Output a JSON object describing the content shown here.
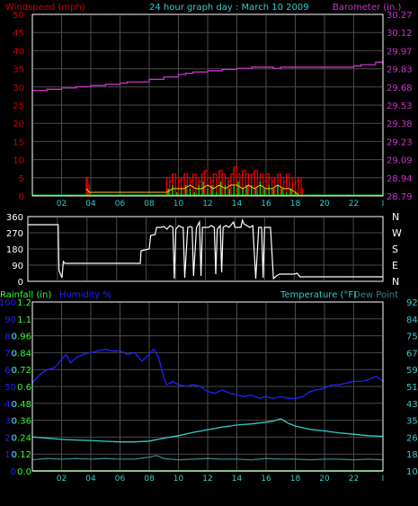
{
  "colors": {
    "background": "#000000",
    "grid": "#4a4a4a",
    "frame": "#ffffff",
    "wind": "#cc0000",
    "gust": "#ff0000",
    "windavg": "#ffcc00",
    "baro": "#cc33cc",
    "windgreen": "#00cc00",
    "rain": "#33ff33",
    "humidity": "#2222ff",
    "temp": "#33cccc",
    "dew": "#338888",
    "title": "#33cccc"
  },
  "chart_data": [
    {
      "type": "line",
      "title": "24 hour graph day : March 10 2009",
      "left_label": "Windspeed (mph)",
      "right_label": "Barometer (in.)",
      "x_ticks": [
        "02",
        "04",
        "06",
        "08",
        "10",
        "12",
        "14",
        "16",
        "18",
        "20",
        "22"
      ],
      "y_left": {
        "ticks": [
          "50",
          "45",
          "40",
          "35",
          "30",
          "25",
          "20",
          "15",
          "10",
          "5",
          "0"
        ],
        "ylim": [
          0,
          50
        ]
      },
      "y_right": {
        "ticks": [
          "30.27",
          "30.12",
          "29.97",
          "29.83",
          "29.68",
          "29.53",
          "29.38",
          "29.23",
          "29.09",
          "28.94",
          "28.79"
        ],
        "ylim": [
          28.79,
          30.27
        ]
      },
      "series": [
        {
          "key": "barometer",
          "axis": "right",
          "x": [
            0.0,
            0.8,
            1.0,
            2.0,
            3.0,
            4.0,
            5.0,
            6.0,
            6.5,
            7.0,
            8.0,
            9.0,
            10.0,
            10.5,
            11.0,
            12.0,
            13.0,
            14.0,
            14.5,
            15.0,
            16.0,
            16.5,
            17.0,
            18.0,
            19.0,
            20.0,
            21.0,
            22.0,
            22.5,
            23.0,
            23.5,
            24.0
          ],
          "y": [
            29.65,
            29.65,
            29.66,
            29.67,
            29.68,
            29.69,
            29.7,
            29.71,
            29.72,
            29.72,
            29.74,
            29.76,
            29.78,
            29.79,
            29.8,
            29.81,
            29.82,
            29.83,
            29.83,
            29.84,
            29.84,
            29.83,
            29.84,
            29.84,
            29.84,
            29.84,
            29.84,
            29.85,
            29.86,
            29.86,
            29.88,
            29.86
          ]
        },
        {
          "key": "wind_gust",
          "axis": "left",
          "x": [
            3.6,
            3.7,
            3.8,
            3.9,
            4.0,
            9.0,
            9.2,
            9.4,
            9.6,
            9.8,
            10.0,
            10.2,
            10.4,
            10.6,
            10.8,
            11.0,
            11.2,
            11.4,
            11.6,
            11.8,
            12.0,
            12.2,
            12.4,
            12.6,
            12.8,
            13.0,
            13.2,
            13.4,
            13.6,
            13.8,
            14.0,
            14.2,
            14.4,
            14.6,
            14.8,
            15.0,
            15.2,
            15.4,
            15.6,
            15.8,
            16.0,
            16.2,
            16.4,
            16.6,
            16.8,
            17.0,
            17.2,
            17.4,
            17.6,
            17.8,
            18.0,
            18.2,
            18.4,
            18.5
          ],
          "y": [
            0,
            5,
            3,
            1,
            0,
            0,
            5,
            4,
            6,
            5,
            4,
            5,
            6,
            5,
            4,
            6,
            5,
            4,
            6,
            7,
            5,
            4,
            6,
            5,
            7,
            6,
            5,
            4,
            6,
            8,
            6,
            5,
            7,
            6,
            5,
            6,
            7,
            5,
            6,
            4,
            6,
            5,
            4,
            5,
            6,
            5,
            4,
            6,
            5,
            3,
            4,
            5,
            2,
            0
          ]
        },
        {
          "key": "wind_green",
          "axis": "left",
          "x": [
            9.0,
            9.3,
            9.6,
            9.9,
            10.2,
            10.5,
            10.8,
            11.1,
            11.4,
            11.7,
            12.0,
            12.3,
            12.6,
            12.9,
            13.2,
            13.5,
            13.8,
            14.1,
            14.4,
            14.7,
            15.0,
            15.3,
            15.6,
            15.9,
            16.2,
            16.5,
            16.8,
            17.1,
            17.4,
            17.7,
            18.0,
            18.3
          ],
          "y": [
            0,
            2,
            3,
            1,
            2,
            3,
            2,
            1,
            3,
            4,
            2,
            3,
            1,
            4,
            3,
            2,
            3,
            4,
            2,
            3,
            3,
            2,
            4,
            2,
            3,
            2,
            3,
            2,
            1,
            2,
            1,
            0
          ]
        },
        {
          "key": "wind_avg",
          "axis": "left",
          "x": [
            3.7,
            3.9,
            9.2,
            9.6,
            10.0,
            10.4,
            10.8,
            11.2,
            11.6,
            12.0,
            12.4,
            12.8,
            13.2,
            13.6,
            14.0,
            14.4,
            14.8,
            15.2,
            15.6,
            16.0,
            16.4,
            16.8,
            17.2,
            17.6,
            18.0,
            18.3
          ],
          "y": [
            2,
            1,
            1,
            2,
            2,
            2,
            3,
            2,
            2,
            3,
            2,
            3,
            2,
            3,
            3,
            2,
            3,
            2,
            3,
            2,
            2,
            3,
            2,
            2,
            1,
            0
          ]
        }
      ]
    },
    {
      "type": "line",
      "right_label": "N W S E N",
      "y_left": {
        "ticks": [
          "360",
          "270",
          "180",
          "90",
          "0"
        ],
        "ylim": [
          0,
          360
        ]
      },
      "y_right_ticks": [
        "N",
        "W",
        "S",
        "E",
        "N"
      ],
      "series": [
        {
          "key": "wind_direction",
          "x": [
            0.0,
            2.0,
            2.05,
            2.1,
            2.3,
            2.4,
            2.5,
            5.0,
            6.0,
            7.0,
            7.6,
            7.65,
            8.2,
            8.3,
            8.6,
            8.7,
            9.0,
            9.2,
            9.4,
            9.6,
            9.8,
            9.9,
            10.0,
            10.2,
            10.4,
            10.5,
            10.6,
            10.8,
            11.0,
            11.1,
            11.2,
            11.4,
            11.6,
            11.7,
            11.8,
            12.0,
            12.2,
            12.4,
            12.6,
            12.7,
            12.8,
            13.0,
            13.1,
            13.2,
            13.4,
            13.6,
            13.8,
            13.9,
            14.0,
            14.2,
            14.4,
            14.5,
            14.6,
            14.8,
            15.0,
            15.2,
            15.4,
            15.6,
            15.8,
            15.9,
            16.0,
            16.2,
            16.4,
            16.6,
            16.8,
            16.9,
            17.0,
            17.2,
            17.4,
            17.6,
            17.8,
            18.0,
            18.2,
            18.4,
            20.0,
            22.0,
            24.0
          ],
          "y": [
            315,
            315,
            315,
            60,
            20,
            110,
            100,
            100,
            100,
            100,
            100,
            170,
            180,
            255,
            260,
            300,
            300,
            305,
            290,
            310,
            300,
            15,
            290,
            310,
            300,
            300,
            20,
            300,
            305,
            300,
            30,
            300,
            330,
            30,
            300,
            300,
            300,
            310,
            300,
            40,
            290,
            310,
            50,
            300,
            310,
            300,
            320,
            330,
            300,
            300,
            300,
            340,
            320,
            310,
            300,
            310,
            15,
            300,
            300,
            20,
            300,
            300,
            300,
            15,
            30,
            35,
            40,
            40,
            40,
            40,
            40,
            40,
            45,
            25,
            25,
            25,
            25
          ]
        }
      ]
    },
    {
      "type": "line",
      "left_label_rain": "Rainfall (in)",
      "left_label_humidity": "Humidity %",
      "right_label_temp": "Temperature (°F)",
      "right_label_dew": "Dew Point",
      "x_ticks": [
        "02",
        "04",
        "06",
        "08",
        "10",
        "12",
        "14",
        "16",
        "18",
        "20",
        "22"
      ],
      "y_humidity": {
        "ticks": [
          "100",
          "90",
          "80",
          "70",
          "60",
          "50",
          "40",
          "30",
          "20",
          "10",
          "0"
        ],
        "ylim": [
          0,
          100
        ]
      },
      "y_rain": {
        "ticks": [
          "1.2",
          "1.1",
          "0.96",
          "0.84",
          "0.72",
          "0.6",
          "0.48",
          "0.36",
          "0.24",
          "0.12",
          "0.0"
        ],
        "ylim": [
          0,
          1.2
        ]
      },
      "y_temp": {
        "ticks": [
          "92",
          "84",
          "75",
          "67",
          "59",
          "51",
          "43",
          "35",
          "26",
          "18",
          "10"
        ],
        "ylim": [
          10,
          92
        ]
      },
      "series": [
        {
          "key": "humidity",
          "x": [
            0.0,
            0.5,
            1.0,
            1.5,
            2.0,
            2.3,
            2.6,
            3.0,
            3.5,
            4.0,
            4.5,
            5.0,
            5.5,
            6.0,
            6.5,
            7.0,
            7.5,
            8.0,
            8.3,
            8.6,
            8.8,
            9.0,
            9.2,
            9.6,
            10.0,
            10.5,
            11.0,
            11.5,
            12.0,
            12.5,
            13.0,
            13.5,
            14.0,
            14.5,
            15.0,
            15.5,
            16.0,
            16.5,
            17.0,
            17.5,
            18.0,
            18.5,
            19.0,
            19.5,
            20.0,
            20.5,
            21.0,
            21.5,
            22.0,
            22.5,
            23.0,
            23.5,
            24.0
          ],
          "y": [
            52,
            57,
            60,
            61,
            66,
            69,
            64,
            67,
            69,
            70,
            71,
            72,
            71,
            71,
            69,
            70,
            65,
            69,
            72,
            68,
            62,
            55,
            51,
            53,
            51,
            50,
            51,
            50,
            47,
            46,
            48,
            46,
            45,
            44,
            45,
            43,
            44,
            43,
            44,
            43,
            43,
            44,
            47,
            48,
            49,
            51,
            51,
            52,
            53,
            53,
            54,
            56,
            53
          ]
        },
        {
          "key": "temperature",
          "x": [
            0.0,
            1.0,
            2.0,
            3.0,
            4.0,
            5.0,
            6.0,
            7.0,
            8.0,
            9.0,
            10.0,
            11.0,
            12.0,
            13.0,
            14.0,
            15.0,
            16.0,
            16.5,
            17.0,
            17.5,
            18.0,
            18.5,
            19.0,
            20.0,
            21.0,
            22.0,
            23.0,
            24.0
          ],
          "y": [
            26.5,
            25.9,
            25.3,
            25.0,
            24.8,
            24.4,
            24.1,
            24.1,
            24.5,
            25.9,
            27.1,
            28.7,
            30.0,
            31.3,
            32.3,
            32.8,
            33.7,
            34.2,
            35.4,
            33.2,
            31.8,
            31.0,
            30.2,
            29.4,
            28.5,
            27.8,
            27.1,
            26.8
          ]
        },
        {
          "key": "dew_point",
          "x": [
            0.0,
            1.0,
            2.0,
            3.0,
            4.0,
            5.0,
            6.0,
            7.0,
            8.0,
            8.5,
            9.0,
            10.0,
            11.0,
            12.0,
            13.0,
            14.0,
            15.0,
            16.0,
            17.0,
            18.0,
            19.0,
            20.0,
            21.0,
            22.0,
            23.0,
            24.0
          ],
          "y": [
            15.4,
            16.0,
            15.7,
            16.0,
            15.7,
            16.0,
            15.7,
            15.7,
            16.7,
            17.5,
            16.0,
            15.4,
            15.7,
            16.0,
            15.7,
            15.7,
            15.4,
            16.0,
            15.7,
            15.7,
            15.4,
            15.7,
            15.7,
            15.4,
            15.7,
            15.4
          ]
        },
        {
          "key": "rainfall",
          "x": [
            0,
            24
          ],
          "y": [
            0,
            0
          ]
        }
      ]
    }
  ]
}
